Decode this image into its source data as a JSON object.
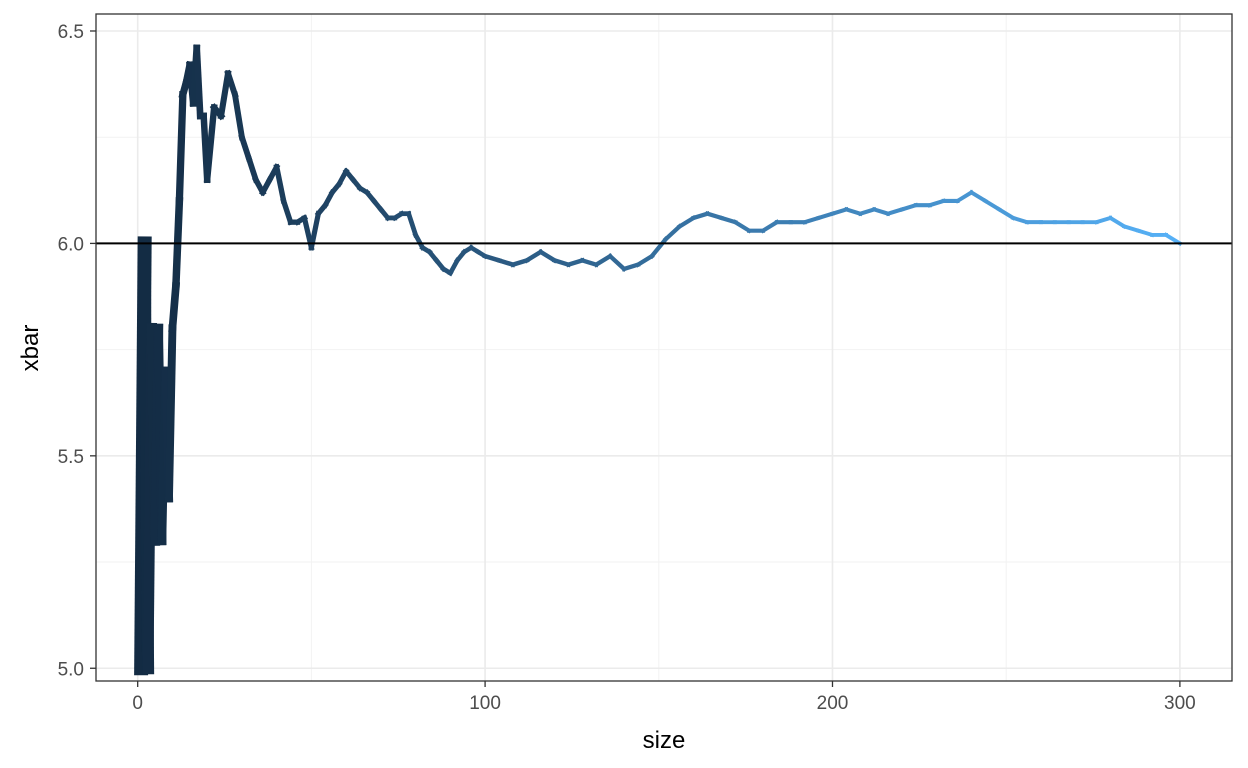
{
  "chart_data": {
    "type": "line",
    "title": "",
    "xlabel": "size",
    "ylabel": "xbar",
    "xlim": [
      -12,
      315
    ],
    "ylim": [
      4.97,
      6.54
    ],
    "x_ticks": [
      0,
      100,
      200,
      300
    ],
    "y_ticks": [
      5.0,
      5.5,
      6.0,
      6.5
    ],
    "x_tick_labels": [
      "0",
      "100",
      "200",
      "300"
    ],
    "y_tick_labels": [
      "5.0",
      "5.5",
      "6.0",
      "6.5"
    ],
    "grid": true,
    "legend": "none",
    "reference_line": {
      "y": 6.0,
      "color": "#000000"
    },
    "color_gradient": {
      "low": "#132B43",
      "high": "#56B1F7"
    },
    "series": [
      {
        "x": [
          1,
          2,
          3,
          4,
          5,
          6,
          7,
          8,
          9,
          10,
          11,
          12,
          13,
          14,
          15,
          16,
          17,
          18,
          19,
          20,
          22,
          24,
          26,
          28,
          30,
          32,
          34,
          36,
          38,
          40,
          42,
          44,
          46,
          48,
          50,
          52,
          54,
          56,
          58,
          60,
          62,
          64,
          66,
          68,
          70,
          72,
          74,
          76,
          78,
          80,
          82,
          84,
          86,
          88,
          90,
          92,
          94,
          96,
          98,
          100,
          104,
          108,
          112,
          116,
          120,
          124,
          128,
          132,
          136,
          140,
          144,
          148,
          152,
          156,
          160,
          164,
          168,
          172,
          176,
          180,
          184,
          188,
          192,
          196,
          200,
          204,
          208,
          212,
          216,
          220,
          224,
          228,
          232,
          236,
          240,
          244,
          248,
          252,
          256,
          260,
          264,
          268,
          272,
          276,
          280,
          284,
          288,
          292,
          296,
          300
        ],
        "y": [
          5.0,
          6.0,
          5.0,
          5.8,
          5.3,
          5.8,
          5.3,
          5.7,
          5.4,
          5.8,
          5.9,
          6.1,
          6.35,
          6.38,
          6.42,
          6.33,
          6.46,
          6.3,
          6.3,
          6.15,
          6.32,
          6.3,
          6.4,
          6.35,
          6.25,
          6.2,
          6.15,
          6.12,
          6.15,
          6.18,
          6.1,
          6.05,
          6.05,
          6.06,
          5.99,
          6.07,
          6.09,
          6.12,
          6.14,
          6.17,
          6.15,
          6.13,
          6.12,
          6.1,
          6.08,
          6.06,
          6.06,
          6.07,
          6.07,
          6.02,
          5.99,
          5.98,
          5.96,
          5.94,
          5.93,
          5.96,
          5.98,
          5.99,
          5.98,
          5.97,
          5.96,
          5.95,
          5.96,
          5.98,
          5.96,
          5.95,
          5.96,
          5.95,
          5.97,
          5.94,
          5.95,
          5.97,
          6.01,
          6.04,
          6.06,
          6.07,
          6.06,
          6.05,
          6.03,
          6.03,
          6.05,
          6.05,
          6.05,
          6.06,
          6.07,
          6.08,
          6.07,
          6.08,
          6.07,
          6.08,
          6.09,
          6.09,
          6.1,
          6.1,
          6.12,
          6.1,
          6.08,
          6.06,
          6.05,
          6.05,
          6.05,
          6.05,
          6.05,
          6.05,
          6.06,
          6.04,
          6.03,
          6.02,
          6.02,
          6.0
        ]
      }
    ]
  }
}
